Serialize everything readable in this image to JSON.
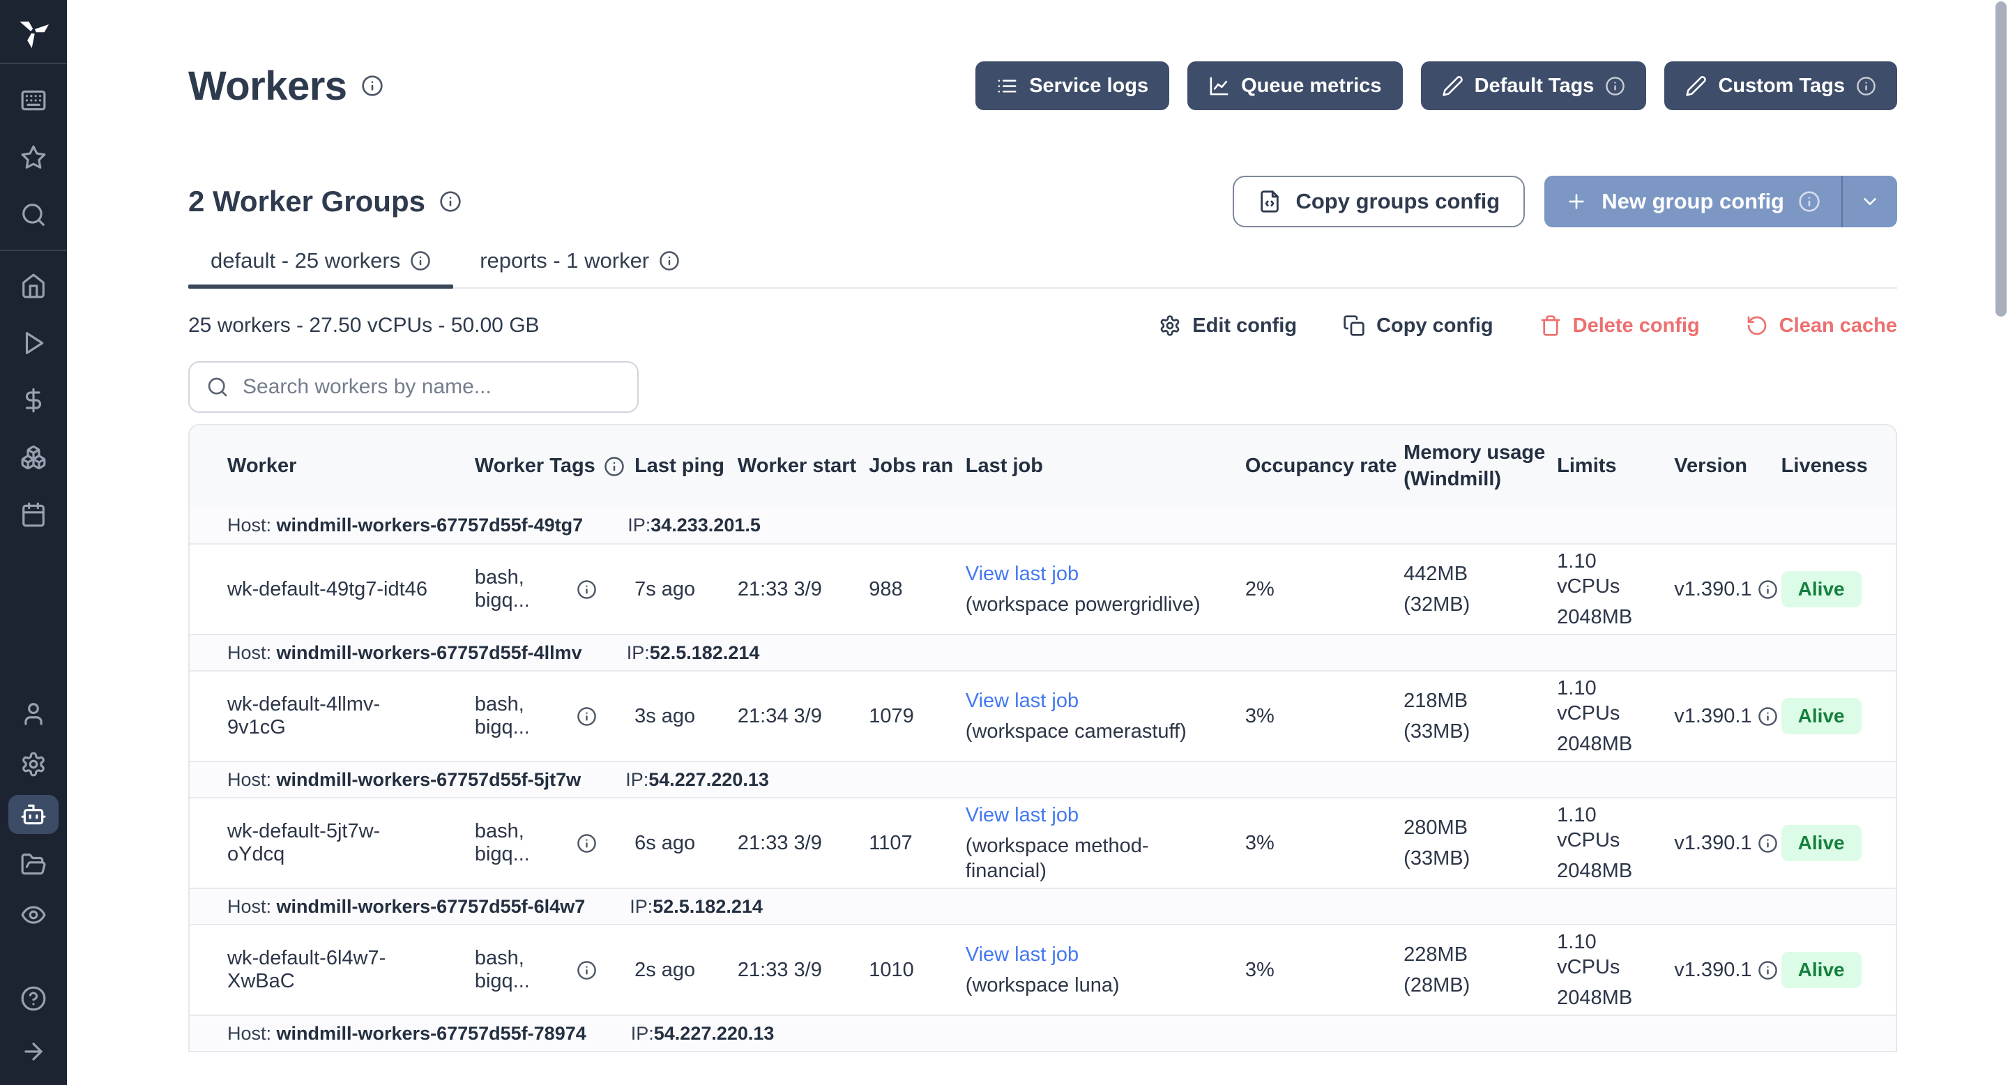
{
  "page": {
    "title": "Workers"
  },
  "colors": {
    "accent_dark": "#3e4d69",
    "accent_blue": "#7c97c4",
    "danger": "#ee6f6f",
    "link": "#4478f2",
    "alive_bg": "#dcfce7",
    "alive_text": "#15803d"
  },
  "sidebar": {
    "active": "robot",
    "groups": [
      [
        "keyboard",
        "star",
        "search"
      ],
      [
        "home",
        "play",
        "dollar",
        "boxes",
        "calendar"
      ]
    ],
    "bottom": [
      "user",
      "gear",
      "robot",
      "folder-open",
      "eye"
    ],
    "footer": [
      "help",
      "arrow-right"
    ]
  },
  "toolbar": {
    "buttons": [
      {
        "name": "service-logs",
        "icon": "list",
        "label": "Service logs",
        "info": false
      },
      {
        "name": "queue-metrics",
        "icon": "chart",
        "label": "Queue metrics",
        "info": false
      },
      {
        "name": "default-tags",
        "icon": "pen",
        "label": "Default Tags",
        "info": true
      },
      {
        "name": "custom-tags",
        "icon": "pen",
        "label": "Custom Tags",
        "info": true
      }
    ]
  },
  "groups": {
    "heading": "2 Worker Groups",
    "copy_config_label": "Copy groups config",
    "new_config_label": "New group config"
  },
  "tabs": [
    {
      "name": "default",
      "label": "default - 25 workers",
      "active": true
    },
    {
      "name": "reports",
      "label": "reports - 1 worker",
      "active": false
    }
  ],
  "group_detail": {
    "summary": "25 workers - 27.50 vCPUs - 50.00 GB",
    "actions": [
      {
        "name": "edit-config",
        "icon": "gear",
        "label": "Edit config",
        "danger": false
      },
      {
        "name": "copy-config",
        "icon": "copy",
        "label": "Copy config",
        "danger": false
      },
      {
        "name": "delete-config",
        "icon": "trash",
        "label": "Delete config",
        "danger": true
      },
      {
        "name": "clean-cache",
        "icon": "refresh",
        "label": "Clean cache",
        "danger": true
      }
    ]
  },
  "search": {
    "placeholder": "Search workers by name..."
  },
  "table": {
    "host_prefix": "Host:",
    "ip_prefix": "IP:",
    "columns": [
      {
        "key": "worker",
        "label": "Worker",
        "info": false
      },
      {
        "key": "tags",
        "label": "Worker Tags",
        "info": true
      },
      {
        "key": "last-ping",
        "label": "Last ping",
        "info": false
      },
      {
        "key": "worker-start",
        "label": "Worker start",
        "info": false
      },
      {
        "key": "jobs-ran",
        "label": "Jobs ran",
        "info": false
      },
      {
        "key": "last-job",
        "label": "Last job",
        "info": false
      },
      {
        "key": "occupancy-rate",
        "label": "Occupancy rate",
        "info": false
      },
      {
        "key": "memory-usage",
        "label": "Memory usage",
        "label2": "(Windmill)",
        "info": false
      },
      {
        "key": "limits",
        "label": "Limits",
        "info": false
      },
      {
        "key": "version",
        "label": "Version",
        "info": false
      },
      {
        "key": "liveness",
        "label": "Liveness",
        "info": false
      }
    ],
    "rows": [
      {
        "type": "host",
        "host": "windmill-workers-67757d55f-49tg7",
        "ip": "34.233.201.5"
      },
      {
        "type": "worker",
        "worker": "wk-default-49tg7-idt46",
        "tags": "bash, bigq...",
        "last_ping": "7s ago",
        "worker_start": "21:33 3/9",
        "jobs_ran": "988",
        "last_job": {
          "link": "View last job",
          "workspace": "(workspace powergridlive)"
        },
        "occupancy": "2%",
        "memory": {
          "total": "442MB",
          "windmill": "(32MB)"
        },
        "limits": {
          "cpu": "1.10 vCPUs",
          "memory": "2048MB"
        },
        "version": "v1.390.1",
        "liveness": "Alive"
      },
      {
        "type": "host",
        "host": "windmill-workers-67757d55f-4llmv",
        "ip": "52.5.182.214"
      },
      {
        "type": "worker",
        "worker": "wk-default-4llmv-9v1cG",
        "tags": "bash, bigq...",
        "last_ping": "3s ago",
        "worker_start": "21:34 3/9",
        "jobs_ran": "1079",
        "last_job": {
          "link": "View last job",
          "workspace": "(workspace camerastuff)"
        },
        "occupancy": "3%",
        "memory": {
          "total": "218MB",
          "windmill": "(33MB)"
        },
        "limits": {
          "cpu": "1.10 vCPUs",
          "memory": "2048MB"
        },
        "version": "v1.390.1",
        "liveness": "Alive"
      },
      {
        "type": "host",
        "host": "windmill-workers-67757d55f-5jt7w",
        "ip": "54.227.220.13"
      },
      {
        "type": "worker",
        "worker": "wk-default-5jt7w-oYdcq",
        "tags": "bash, bigq...",
        "last_ping": "6s ago",
        "worker_start": "21:33 3/9",
        "jobs_ran": "1107",
        "last_job": {
          "link": "View last job",
          "workspace": "(workspace method-financial)"
        },
        "occupancy": "3%",
        "memory": {
          "total": "280MB",
          "windmill": "(33MB)"
        },
        "limits": {
          "cpu": "1.10 vCPUs",
          "memory": "2048MB"
        },
        "version": "v1.390.1",
        "liveness": "Alive"
      },
      {
        "type": "host",
        "host": "windmill-workers-67757d55f-6l4w7",
        "ip": "52.5.182.214"
      },
      {
        "type": "worker",
        "worker": "wk-default-6l4w7-XwBaC",
        "tags": "bash, bigq...",
        "last_ping": "2s ago",
        "worker_start": "21:33 3/9",
        "jobs_ran": "1010",
        "last_job": {
          "link": "View last job",
          "workspace": "(workspace luna)"
        },
        "occupancy": "3%",
        "memory": {
          "total": "228MB",
          "windmill": "(28MB)"
        },
        "limits": {
          "cpu": "1.10 vCPUs",
          "memory": "2048MB"
        },
        "version": "v1.390.1",
        "liveness": "Alive"
      },
      {
        "type": "host",
        "host": "windmill-workers-67757d55f-78974",
        "ip": "54.227.220.13"
      }
    ]
  }
}
